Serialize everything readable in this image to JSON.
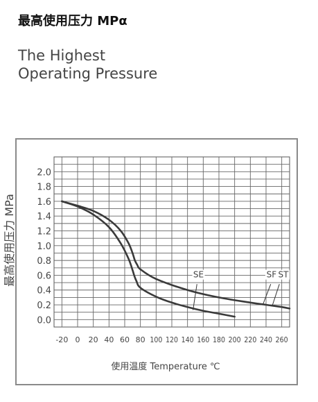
{
  "header": {
    "title_cn": "最高使用压力 MPα",
    "title_en_line1": "The Highest",
    "title_en_line2": "Operating Pressure"
  },
  "chart_data": {
    "type": "line",
    "title": "",
    "xlabel": "使用温度 Temperature ℃",
    "ylabel": "最高使用压力 MPa",
    "xlim": [
      -30,
      270
    ],
    "ylim": [
      -0.1,
      2.2
    ],
    "grid": true,
    "x_ticks": [
      "-20",
      "0",
      "20",
      "40",
      "60",
      "80",
      "100",
      "120",
      "140",
      "160",
      "180",
      "200",
      "220",
      "240",
      "260"
    ],
    "y_ticks": [
      "2.0",
      "1.8",
      "1.6",
      "1.4",
      "1.2",
      "1.0",
      "0.8",
      "0.6",
      "0.4",
      "0.2",
      "0.0"
    ],
    "series": [
      {
        "name": "SE",
        "x": [
          -20,
          0,
          20,
          40,
          55,
          65,
          70,
          72,
          75,
          80,
          100,
          120,
          140,
          160,
          180,
          200
        ],
        "y": [
          1.6,
          1.53,
          1.42,
          1.25,
          1.03,
          0.82,
          0.67,
          0.6,
          0.52,
          0.43,
          0.31,
          0.23,
          0.17,
          0.12,
          0.08,
          0.04
        ]
      },
      {
        "name": "SF/ST",
        "x": [
          -20,
          0,
          20,
          40,
          55,
          65,
          70,
          73,
          76,
          80,
          100,
          140,
          180,
          220,
          240,
          260,
          270
        ],
        "y": [
          1.6,
          1.54,
          1.47,
          1.35,
          1.2,
          1.03,
          0.9,
          0.8,
          0.74,
          0.68,
          0.55,
          0.4,
          0.3,
          0.23,
          0.2,
          0.17,
          0.15
        ]
      }
    ],
    "annotations": [
      {
        "text": "SE",
        "x": 150,
        "y": 0.13
      },
      {
        "text": "SF",
        "x": 238,
        "y": 0.2
      },
      {
        "text": "ST",
        "x": 253,
        "y": 0.18
      }
    ]
  }
}
